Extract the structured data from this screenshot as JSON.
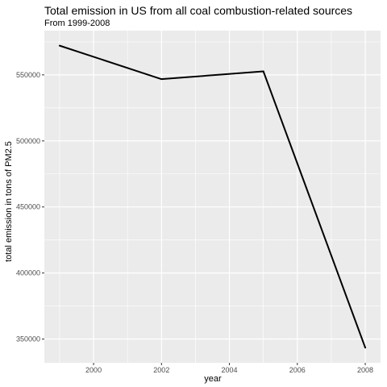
{
  "chart_data": {
    "type": "line",
    "title": "Total emission in US from all coal combustion-related sources",
    "subtitle": "From 1999-2008",
    "xlabel": "year",
    "ylabel": "total emission in tons of PM2.5",
    "x": [
      1999,
      2002,
      2005,
      2008
    ],
    "series": [
      {
        "values": [
          572126.5,
          546789.2,
          552675.5,
          343432.2
        ]
      }
    ],
    "xlim": [
      1998.55,
      2008.45
    ],
    "ylim": [
      332000,
      583500
    ],
    "x_ticks": [
      2000,
      2002,
      2004,
      2006,
      2008
    ],
    "x_tick_labels": [
      "2000",
      "2002",
      "2004",
      "2006",
      "2008"
    ],
    "y_ticks": [
      350000,
      400000,
      450000,
      500000,
      550000
    ],
    "y_tick_labels": [
      "350000",
      "400000",
      "450000",
      "500000",
      "550000"
    ],
    "grid": true,
    "colors": {
      "panel_background": "#EBEBEB",
      "grid_major": "#FFFFFF",
      "line": "#000000",
      "tick_text": "#4D4D4D"
    }
  }
}
